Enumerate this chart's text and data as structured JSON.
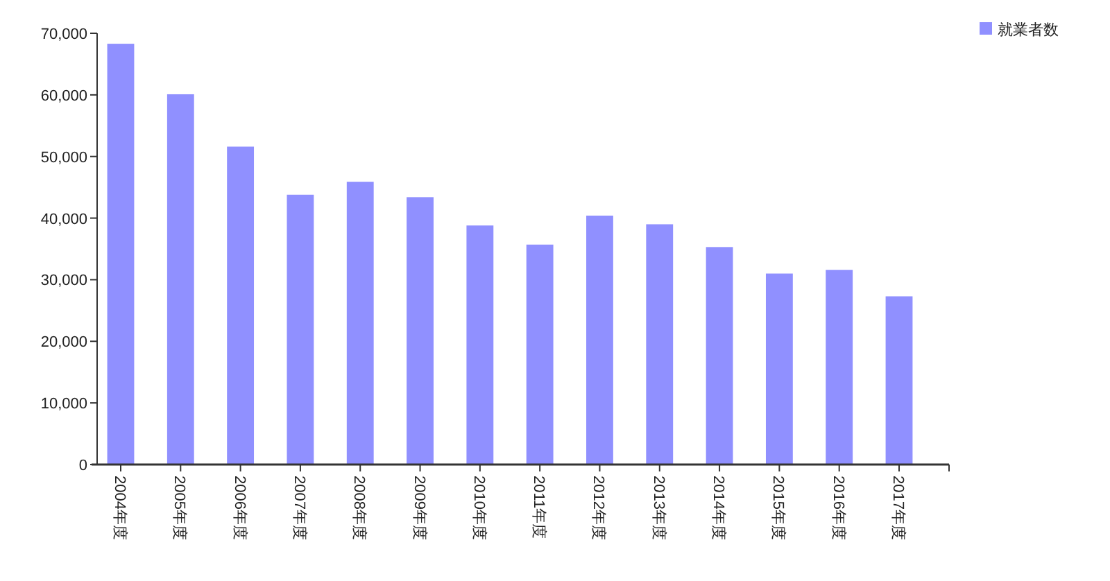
{
  "chart_data": {
    "type": "bar",
    "categories": [
      "2004年度",
      "2005年度",
      "2006年度",
      "2007年度",
      "2008年度",
      "2009年度",
      "2010年度",
      "2011年度",
      "2012年度",
      "2013年度",
      "2014年度",
      "2015年度",
      "2016年度",
      "2017年度"
    ],
    "series": [
      {
        "name": "就業者数",
        "color": "#9090ff",
        "values": [
          68300,
          60100,
          51600,
          43800,
          45900,
          43400,
          38800,
          35700,
          40400,
          39000,
          35300,
          31000,
          31600,
          27300
        ]
      }
    ],
    "ylim": [
      0,
      70000
    ],
    "yticks": [
      {
        "value": 0,
        "label": "0"
      },
      {
        "value": 10000,
        "label": "10,000"
      },
      {
        "value": 20000,
        "label": "20,000"
      },
      {
        "value": 30000,
        "label": "30,000"
      },
      {
        "value": 40000,
        "label": "40,000"
      },
      {
        "value": 50000,
        "label": "50,000"
      },
      {
        "value": 60000,
        "label": "60,000"
      },
      {
        "value": 70000,
        "label": "70,000"
      }
    ],
    "grid": false,
    "legend": "top right"
  }
}
